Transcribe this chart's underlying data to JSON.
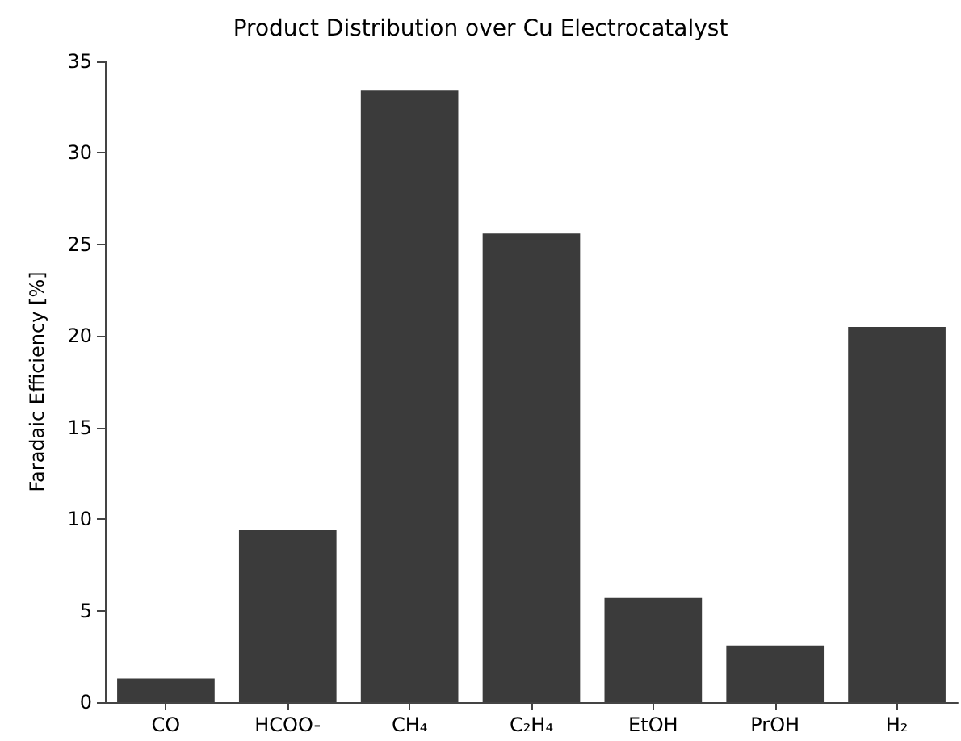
{
  "chart_data": {
    "type": "bar",
    "title": "Product Distribution over Cu Electrocatalyst",
    "ylabel": "Faradaic Efficiency [%]",
    "categories": [
      "CO",
      "HCOO-",
      "CH₄",
      "C₂H₄",
      "EtOH",
      "PrOH",
      "H₂"
    ],
    "values": [
      1.3,
      9.4,
      33.4,
      25.6,
      5.7,
      3.1,
      20.5
    ],
    "color": "#3b3b3b",
    "ylim": [
      0,
      35
    ],
    "yticks": [
      0,
      5,
      10,
      15,
      20,
      25,
      30,
      35
    ],
    "grid": false
  }
}
